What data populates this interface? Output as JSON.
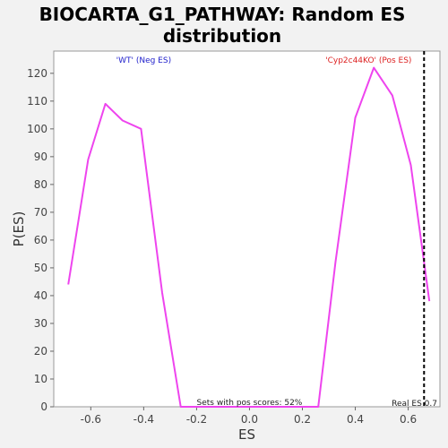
{
  "chart_data": {
    "type": "line",
    "title_line1": "BIOCARTA_G1_PATHWAY: Random ES",
    "title_line2": "distribution",
    "xlabel": "ES",
    "ylabel": "P(ES)",
    "xlim": [
      -0.74,
      0.72
    ],
    "ylim": [
      0,
      128
    ],
    "x_ticks": [
      -0.6,
      -0.4,
      -0.2,
      0.0,
      0.2,
      0.4,
      0.6
    ],
    "x_tick_labels": [
      "-0.6",
      "-0.4",
      "-0.2",
      "0.0",
      "0.2",
      "0.4",
      "0.6"
    ],
    "y_ticks": [
      0,
      10,
      20,
      30,
      40,
      50,
      60,
      70,
      80,
      90,
      100,
      110,
      120
    ],
    "y_tick_labels": [
      "0",
      "10",
      "20",
      "30",
      "40",
      "50",
      "60",
      "70",
      "80",
      "90",
      "100",
      "110",
      "120"
    ],
    "grid": false,
    "series": [
      {
        "color": "#ee44ee",
        "x": [
          -0.685,
          -0.61,
          -0.545,
          -0.48,
          -0.41,
          -0.33,
          -0.26,
          -0.2,
          -0.1,
          0.0,
          0.1,
          0.2,
          0.26,
          0.325,
          0.4,
          0.47,
          0.54,
          0.61,
          0.68
        ],
        "y": [
          44,
          89,
          109,
          103,
          100,
          41,
          0,
          0,
          0,
          0,
          0,
          0,
          0,
          52,
          104,
          122,
          112,
          87,
          38
        ]
      }
    ],
    "annotations": {
      "neg_label": "'WT' (Neg ES)",
      "neg_color": "#2222cc",
      "pos_label": "'Cyp2c44KO' (Pos ES)",
      "pos_color": "#dd2222",
      "sets_text": "Sets with pos scores: 52%",
      "real_es_text": "Real ES 0.7",
      "real_es_value": 0.66
    }
  }
}
